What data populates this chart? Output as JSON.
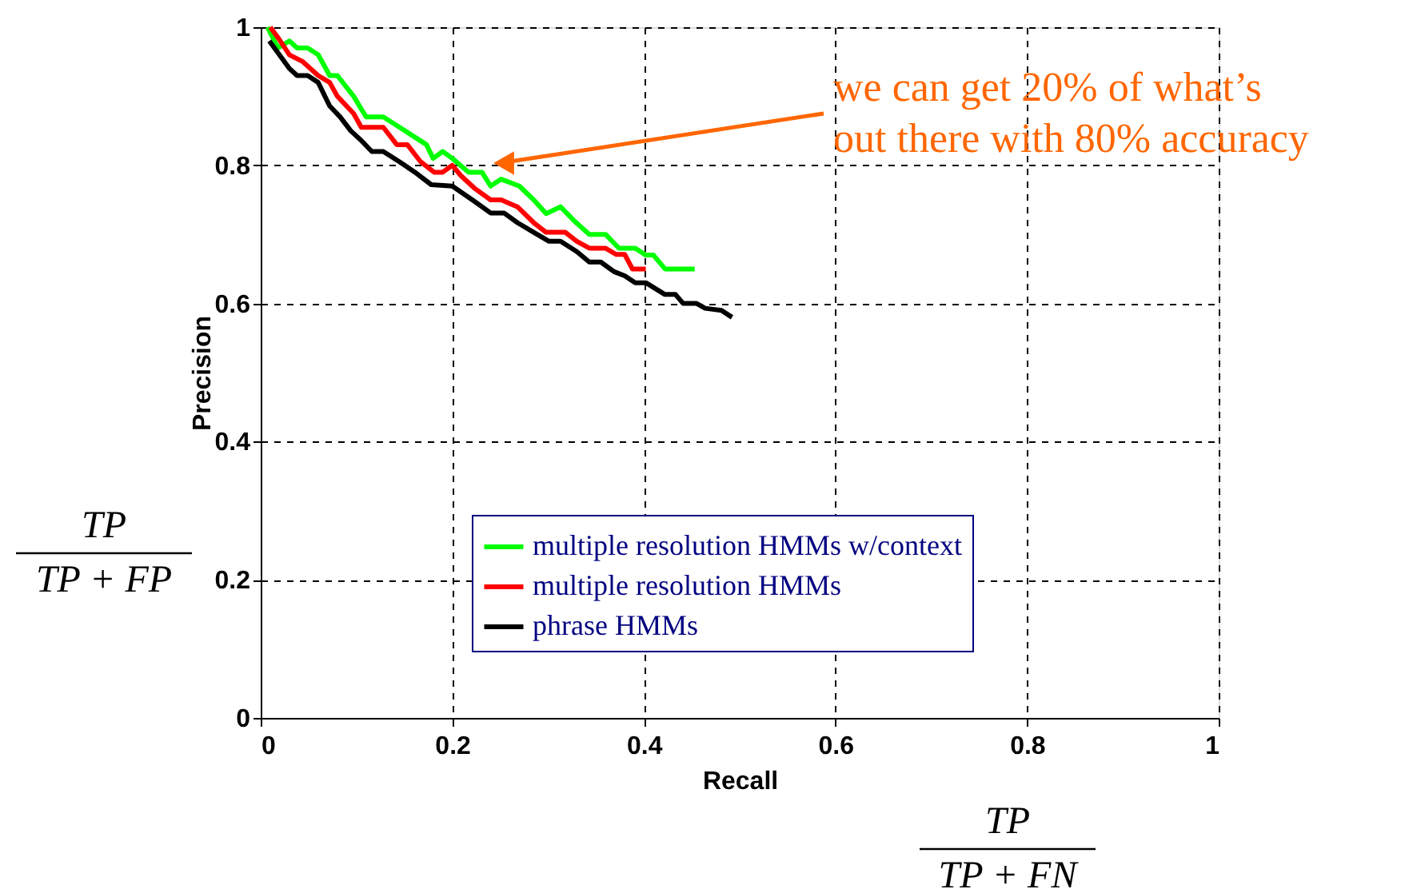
{
  "chart_data": {
    "type": "line",
    "xlabel": "Recall",
    "ylabel": "Precision",
    "xlim": [
      0,
      1
    ],
    "ylim": [
      0,
      1
    ],
    "xticks": [
      0,
      0.2,
      0.4,
      0.6,
      0.8,
      1
    ],
    "yticks": [
      0,
      0.2,
      0.4,
      0.6,
      0.8,
      1
    ],
    "grid": true,
    "legend": "bottom right",
    "line_style": "solid",
    "marker": "none",
    "annotations": [
      "we can get 20% of what’s\nout there with 80% accuracy",
      "TP\nTP + FP",
      "TP\nTP + FN"
    ],
    "series": [
      {
        "name": "multiple resolution HMMs w/context",
        "color": "#00ff00",
        "x": [
          0.007,
          0.018,
          0.03,
          0.038,
          0.049,
          0.06,
          0.072,
          0.08,
          0.097,
          0.11,
          0.128,
          0.145,
          0.173,
          0.18,
          0.19,
          0.2,
          0.217,
          0.231,
          0.24,
          0.251,
          0.27,
          0.285,
          0.298,
          0.313,
          0.327,
          0.343,
          0.36,
          0.374,
          0.391,
          0.402,
          0.41,
          0.422,
          0.453
        ],
        "values": [
          1.0,
          0.97,
          0.98,
          0.97,
          0.97,
          0.96,
          0.93,
          0.93,
          0.9,
          0.87,
          0.87,
          0.855,
          0.83,
          0.81,
          0.82,
          0.81,
          0.79,
          0.79,
          0.77,
          0.78,
          0.77,
          0.75,
          0.73,
          0.74,
          0.72,
          0.7,
          0.7,
          0.68,
          0.68,
          0.67,
          0.67,
          0.65,
          0.65
        ]
      },
      {
        "name": "multiple resolution HMMs",
        "color": "#ff0000",
        "x": [
          0.01,
          0.018,
          0.03,
          0.044,
          0.06,
          0.072,
          0.08,
          0.097,
          0.105,
          0.128,
          0.142,
          0.153,
          0.167,
          0.181,
          0.19,
          0.2,
          0.209,
          0.223,
          0.24,
          0.251,
          0.268,
          0.285,
          0.298,
          0.318,
          0.33,
          0.343,
          0.36,
          0.371,
          0.38,
          0.388,
          0.402
        ],
        "values": [
          1.0,
          0.985,
          0.96,
          0.95,
          0.93,
          0.92,
          0.9,
          0.875,
          0.855,
          0.855,
          0.83,
          0.83,
          0.805,
          0.79,
          0.79,
          0.8,
          0.785,
          0.767,
          0.75,
          0.75,
          0.74,
          0.717,
          0.703,
          0.703,
          0.69,
          0.68,
          0.68,
          0.671,
          0.671,
          0.65,
          0.65
        ]
      },
      {
        "name": "phrase HMMs",
        "color": "#000000",
        "x": [
          0.009,
          0.018,
          0.03,
          0.038,
          0.049,
          0.06,
          0.072,
          0.083,
          0.094,
          0.105,
          0.116,
          0.128,
          0.145,
          0.161,
          0.178,
          0.2,
          0.223,
          0.24,
          0.254,
          0.268,
          0.285,
          0.301,
          0.313,
          0.33,
          0.343,
          0.355,
          0.369,
          0.38,
          0.391,
          0.402,
          0.422,
          0.433,
          0.441,
          0.455,
          0.464,
          0.481,
          0.492
        ],
        "values": [
          0.98,
          0.963,
          0.94,
          0.93,
          0.93,
          0.92,
          0.886,
          0.87,
          0.85,
          0.836,
          0.82,
          0.82,
          0.805,
          0.79,
          0.772,
          0.77,
          0.748,
          0.731,
          0.731,
          0.717,
          0.703,
          0.69,
          0.69,
          0.675,
          0.66,
          0.66,
          0.646,
          0.64,
          0.63,
          0.63,
          0.613,
          0.613,
          0.6,
          0.6,
          0.593,
          0.59,
          0.58
        ]
      }
    ]
  }
}
